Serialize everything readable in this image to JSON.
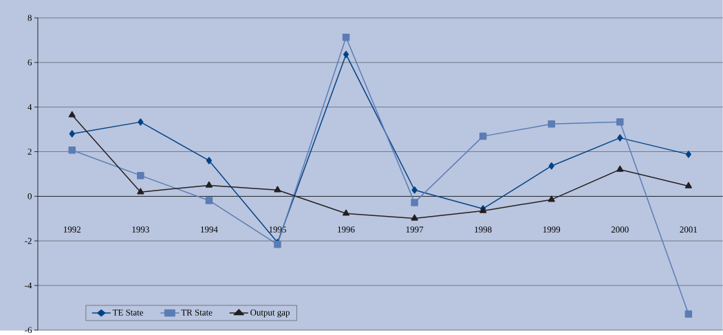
{
  "chart_data": {
    "type": "line",
    "categories": [
      "1992",
      "1993",
      "1994",
      "1995",
      "1996",
      "1997",
      "1998",
      "1999",
      "2000",
      "2001"
    ],
    "series": [
      {
        "name": "TE State",
        "color": "#004386",
        "marker": "diamond",
        "values": [
          2.8,
          3.33,
          1.6,
          -2.07,
          6.36,
          0.28,
          -0.56,
          1.36,
          2.62,
          1.88
        ]
      },
      {
        "name": "TR State",
        "color": "#5b7db5",
        "marker": "square",
        "values": [
          2.07,
          0.93,
          -0.19,
          -2.16,
          7.13,
          -0.28,
          2.69,
          3.24,
          3.33,
          -5.28
        ]
      },
      {
        "name": "Output gap",
        "color": "#231f20",
        "marker": "triangle",
        "values": [
          3.64,
          0.19,
          0.49,
          0.28,
          -0.77,
          -0.99,
          -0.65,
          -0.15,
          1.2,
          0.46
        ]
      }
    ],
    "ylim": [
      -6,
      8
    ],
    "yticks": [
      -6,
      -4,
      -2,
      0,
      2,
      4,
      6,
      8
    ],
    "grid": "y",
    "legend": "bottom left",
    "line_style": "solid"
  }
}
